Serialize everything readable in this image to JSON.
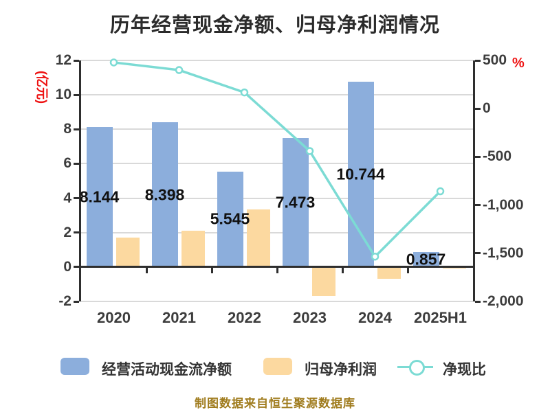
{
  "title": "历年经营现金净额、归母净利润情况",
  "footer": "制图数据来自恒生聚源数据库",
  "left_axis": {
    "name": "(亿元)",
    "ticks": [
      "12",
      "10",
      "8",
      "6",
      "4",
      "2",
      "0",
      "-2"
    ]
  },
  "right_axis": {
    "name": "%",
    "ticks": [
      "500",
      "0",
      "-500",
      "-1,000",
      "-1,500",
      "-2,000"
    ]
  },
  "colors": {
    "cashflow_bar": "#8CAEDC",
    "profit_bar": "#FCD9A0",
    "ratio_line": "#7CDBD4",
    "marker_fill": "#FFFFFF",
    "axis_line": "#2E2E2E",
    "gridline": "#D9D9D9",
    "tick_text": "#3D3D3D",
    "title_text": "#2B2B2B",
    "value_label_text": "#111111",
    "axis_unit_red": "#EE1111",
    "footer_text": "#A07C1E",
    "legend_text": "#333333"
  },
  "chart_data": {
    "type": "bar+line combo",
    "categories": [
      "2020",
      "2021",
      "2022",
      "2023",
      "2024",
      "2025H1"
    ],
    "ylim_left": [
      -2,
      12
    ],
    "ylim_right": [
      -2000,
      500
    ],
    "grid": true,
    "legend_position": "bottom",
    "series": [
      {
        "name": "经营活动现金流净额",
        "type": "bar",
        "axis": "left",
        "unit": "亿元",
        "values": [
          8.144,
          8.398,
          5.545,
          7.473,
          10.744,
          0.857
        ],
        "value_labels": [
          "8.144",
          "8.398",
          "5.545",
          "7.473",
          "10.744",
          "0.857"
        ]
      },
      {
        "name": "归母净利润",
        "type": "bar",
        "axis": "left",
        "unit": "亿元",
        "values": [
          1.7,
          2.1,
          3.35,
          -1.7,
          -0.7,
          -0.1
        ],
        "estimated": true
      },
      {
        "name": "净现比",
        "type": "line",
        "axis": "right",
        "unit": "%",
        "values": [
          479,
          400,
          168,
          -440,
          -1535,
          -857
        ],
        "estimated": true
      }
    ]
  }
}
